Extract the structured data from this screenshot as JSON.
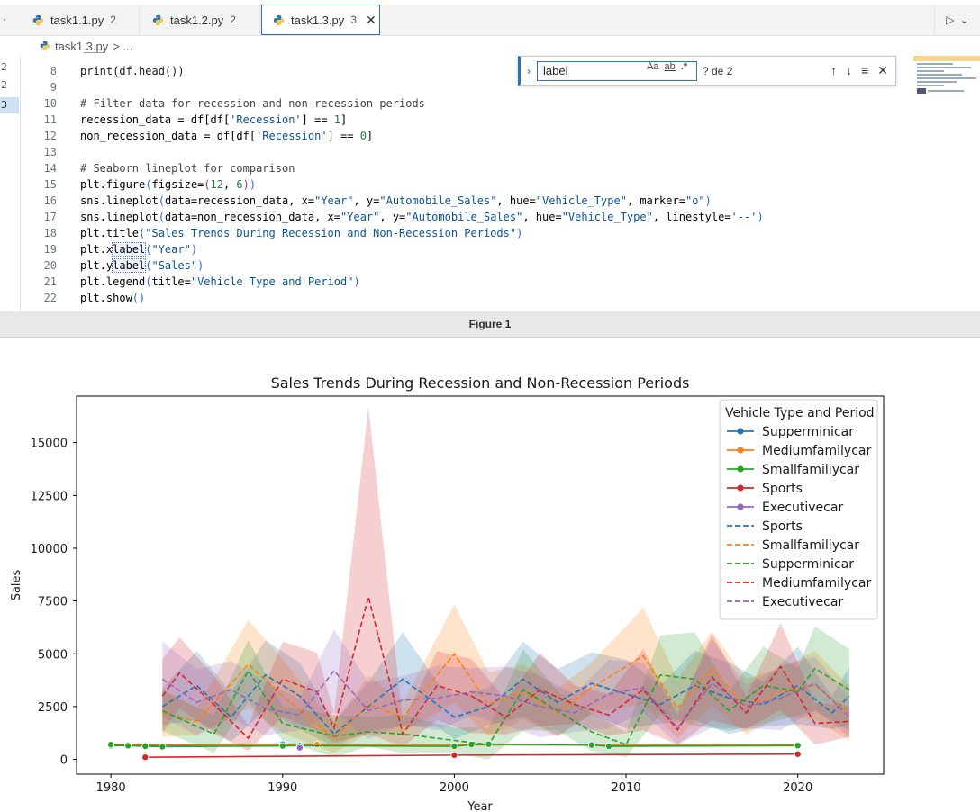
{
  "editor": {
    "tabs": [
      {
        "label": "task1.1.py",
        "count": "2"
      },
      {
        "label": "task1.2.py",
        "count": "2"
      },
      {
        "label": "task1.3.py",
        "count": "3",
        "active": true
      }
    ],
    "breadcrumb": {
      "file": "task1.3.py",
      "rest": "> ..."
    },
    "gutter_markers": [
      "2",
      "2",
      "3"
    ],
    "find": {
      "query": "label",
      "case_label": "Aa",
      "word_label": "ab",
      "regex_label": ".*",
      "result": "? de 2"
    },
    "code_lines": [
      {
        "n": "8",
        "text": "print(df.head())"
      },
      {
        "n": "9",
        "text": ""
      },
      {
        "n": "10",
        "text": "# Filter data for recession and non-recession periods"
      },
      {
        "n": "11",
        "text": "recession_data = df[df['Recession'] == 1]"
      },
      {
        "n": "12",
        "text": "non_recession_data = df[df['Recession'] == 0]"
      },
      {
        "n": "13",
        "text": ""
      },
      {
        "n": "14",
        "text": "# Seaborn lineplot for comparison"
      },
      {
        "n": "15",
        "text": "plt.figure(figsize=(12, 6))"
      },
      {
        "n": "16",
        "text": "sns.lineplot(data=recession_data, x=\"Year\", y=\"Automobile_Sales\", hue=\"Vehicle_Type\", marker=\"o\")"
      },
      {
        "n": "17",
        "text": "sns.lineplot(data=non_recession_data, x=\"Year\", y=\"Automobile_Sales\", hue=\"Vehicle_Type\", linestyle='--')"
      },
      {
        "n": "18",
        "text": "plt.title(\"Sales Trends During Recession and Non-Recession Periods\")"
      },
      {
        "n": "19",
        "text": "plt.xlabel(\"Year\")"
      },
      {
        "n": "20",
        "text": "plt.ylabel(\"Sales\")"
      },
      {
        "n": "21",
        "text": "plt.legend(title=\"Vehicle Type and Period\")"
      },
      {
        "n": "22",
        "text": "plt.show()"
      }
    ]
  },
  "figure_window": {
    "title": "Figure 1"
  },
  "chart_data": {
    "type": "line",
    "title": "Sales Trends During Recession and Non-Recession Periods",
    "xlabel": "Year",
    "ylabel": "Sales",
    "xlim": [
      1978,
      2025
    ],
    "ylim": [
      -700,
      17200
    ],
    "xticks": [
      1980,
      1990,
      2000,
      2010,
      2020
    ],
    "yticks": [
      0,
      2500,
      5000,
      7500,
      10000,
      12500,
      15000
    ],
    "legend": {
      "title": "Vehicle Type and Period",
      "placement": "top-right"
    },
    "grid": false,
    "series": [
      {
        "name": "Supperminicar",
        "style": "solid-marker",
        "color": "#1f77b4",
        "x": [
          1980,
          1990,
          2020
        ],
        "y": [
          650,
          720,
          660
        ]
      },
      {
        "name": "Mediumfamilycar",
        "style": "solid-marker",
        "color": "#ff7f0e",
        "x": [
          1980,
          1992,
          2020
        ],
        "y": [
          720,
          700,
          680
        ]
      },
      {
        "name": "Smallfamiliycar",
        "style": "solid-marker",
        "color": "#2ca02c",
        "x": [
          1980,
          1981,
          1982,
          1983,
          1990,
          1991,
          2000,
          2001,
          2002,
          2008,
          2009,
          2020
        ],
        "y": [
          700,
          650,
          620,
          600,
          640,
          650,
          620,
          700,
          720,
          680,
          620,
          650
        ]
      },
      {
        "name": "Sports",
        "style": "solid-marker",
        "color": "#d62728",
        "x": [
          1982,
          2000,
          2020
        ],
        "y": [
          100,
          200,
          250
        ]
      },
      {
        "name": "Executivecar",
        "style": "solid-marker",
        "color": "#9467bd",
        "x": [
          1991
        ],
        "y": [
          550
        ]
      },
      {
        "name": "Sports",
        "style": "dashed",
        "color": "#1f77b4",
        "x": [
          1983,
          1985,
          1987,
          1989,
          1991,
          1993,
          1995,
          1997,
          1999,
          2000,
          2002,
          2004,
          2006,
          2008,
          2010,
          2012,
          2014,
          2016,
          2018,
          2020,
          2022,
          2023
        ],
        "y": [
          2500,
          3500,
          2000,
          4000,
          3000,
          1200,
          2500,
          3800,
          2600,
          2000,
          2500,
          3800,
          2700,
          3600,
          3100,
          2600,
          3500,
          2900,
          2600,
          3500,
          2200,
          3000
        ]
      },
      {
        "name": "Smallfamiliycar",
        "style": "dashed",
        "color": "#ff7f0e",
        "x": [
          1983,
          1985,
          1988,
          1990,
          1993,
          1995,
          1997,
          2000,
          2002,
          2004,
          2006,
          2008,
          2011,
          2013,
          2015,
          2017,
          2019,
          2021,
          2023
        ],
        "y": [
          2200,
          1800,
          4500,
          3000,
          1000,
          2600,
          2000,
          5000,
          2600,
          3200,
          2200,
          3400,
          4900,
          2400,
          4300,
          2500,
          3200,
          3500,
          2200
        ]
      },
      {
        "name": "Supperminicar",
        "style": "dashed",
        "color": "#2ca02c",
        "x": [
          1983,
          1986,
          1988,
          1990,
          1993,
          1995,
          1997,
          2000,
          2002,
          2004,
          2006,
          2008,
          2010,
          2012,
          2014,
          2016,
          2018,
          2020,
          2021,
          2023
        ],
        "y": [
          2300,
          1200,
          4200,
          1700,
          1100,
          1300,
          1200,
          900,
          700,
          3300,
          2300,
          1300,
          700,
          4000,
          3800,
          2300,
          3500,
          3200,
          4300,
          3300
        ]
      },
      {
        "name": "Mediumfamilycar",
        "style": "dashed",
        "color": "#d62728",
        "x": [
          1983,
          1984,
          1986,
          1988,
          1990,
          1992,
          1993,
          1995,
          1997,
          1999,
          2001,
          2003,
          2005,
          2007,
          2009,
          2011,
          2013,
          2015,
          2017,
          2019,
          2021,
          2023
        ],
        "y": [
          3000,
          4100,
          2600,
          1000,
          3800,
          3200,
          1500,
          7700,
          1200,
          3500,
          3000,
          2000,
          3300,
          2600,
          2100,
          3300,
          1400,
          3900,
          2200,
          4400,
          1700,
          1800
        ]
      },
      {
        "name": "Executivecar",
        "style": "dashed",
        "color": "#9467bd",
        "x": [
          1983,
          1985,
          1987,
          1989,
          1991,
          1993,
          1995,
          1997,
          1999,
          2001,
          2003,
          2005,
          2007,
          2009,
          2011,
          2013,
          2015,
          2017,
          2019,
          2021,
          2023
        ],
        "y": [
          3800,
          2700,
          3300,
          2400,
          2100,
          4200,
          2300,
          2800,
          2900,
          3200,
          3000,
          2500,
          2200,
          3100,
          3400,
          1500,
          3600,
          2500,
          2900,
          3600,
          2000
        ]
      }
    ]
  }
}
